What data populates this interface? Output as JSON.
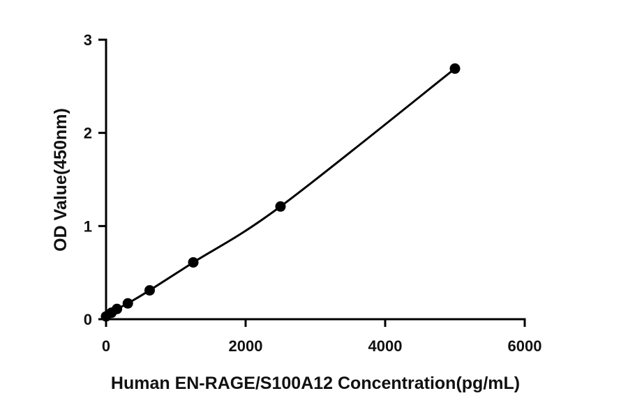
{
  "chart_data": {
    "type": "scatter",
    "title": "",
    "xlabel": "Human EN-RAGE/S100A12 Concentration(pg/mL)",
    "ylabel": "OD Value(450nm)",
    "xlim": [
      0,
      6000
    ],
    "ylim": [
      0,
      3
    ],
    "x_ticks": [
      0,
      2000,
      4000,
      6000
    ],
    "y_ticks": [
      0,
      1,
      2,
      3
    ],
    "x_tick_labels": [
      "0",
      "2000",
      "4000",
      "6000"
    ],
    "y_tick_labels": [
      "0",
      "1",
      "2",
      "3"
    ],
    "grid": false,
    "legend": "none",
    "fit_line": true,
    "color": "#000000",
    "series": [
      {
        "x": [
          0,
          78,
          156,
          312,
          625,
          1250,
          2500,
          5000
        ],
        "y": [
          0.03,
          0.07,
          0.11,
          0.17,
          0.31,
          0.61,
          1.21,
          2.69
        ]
      }
    ]
  }
}
